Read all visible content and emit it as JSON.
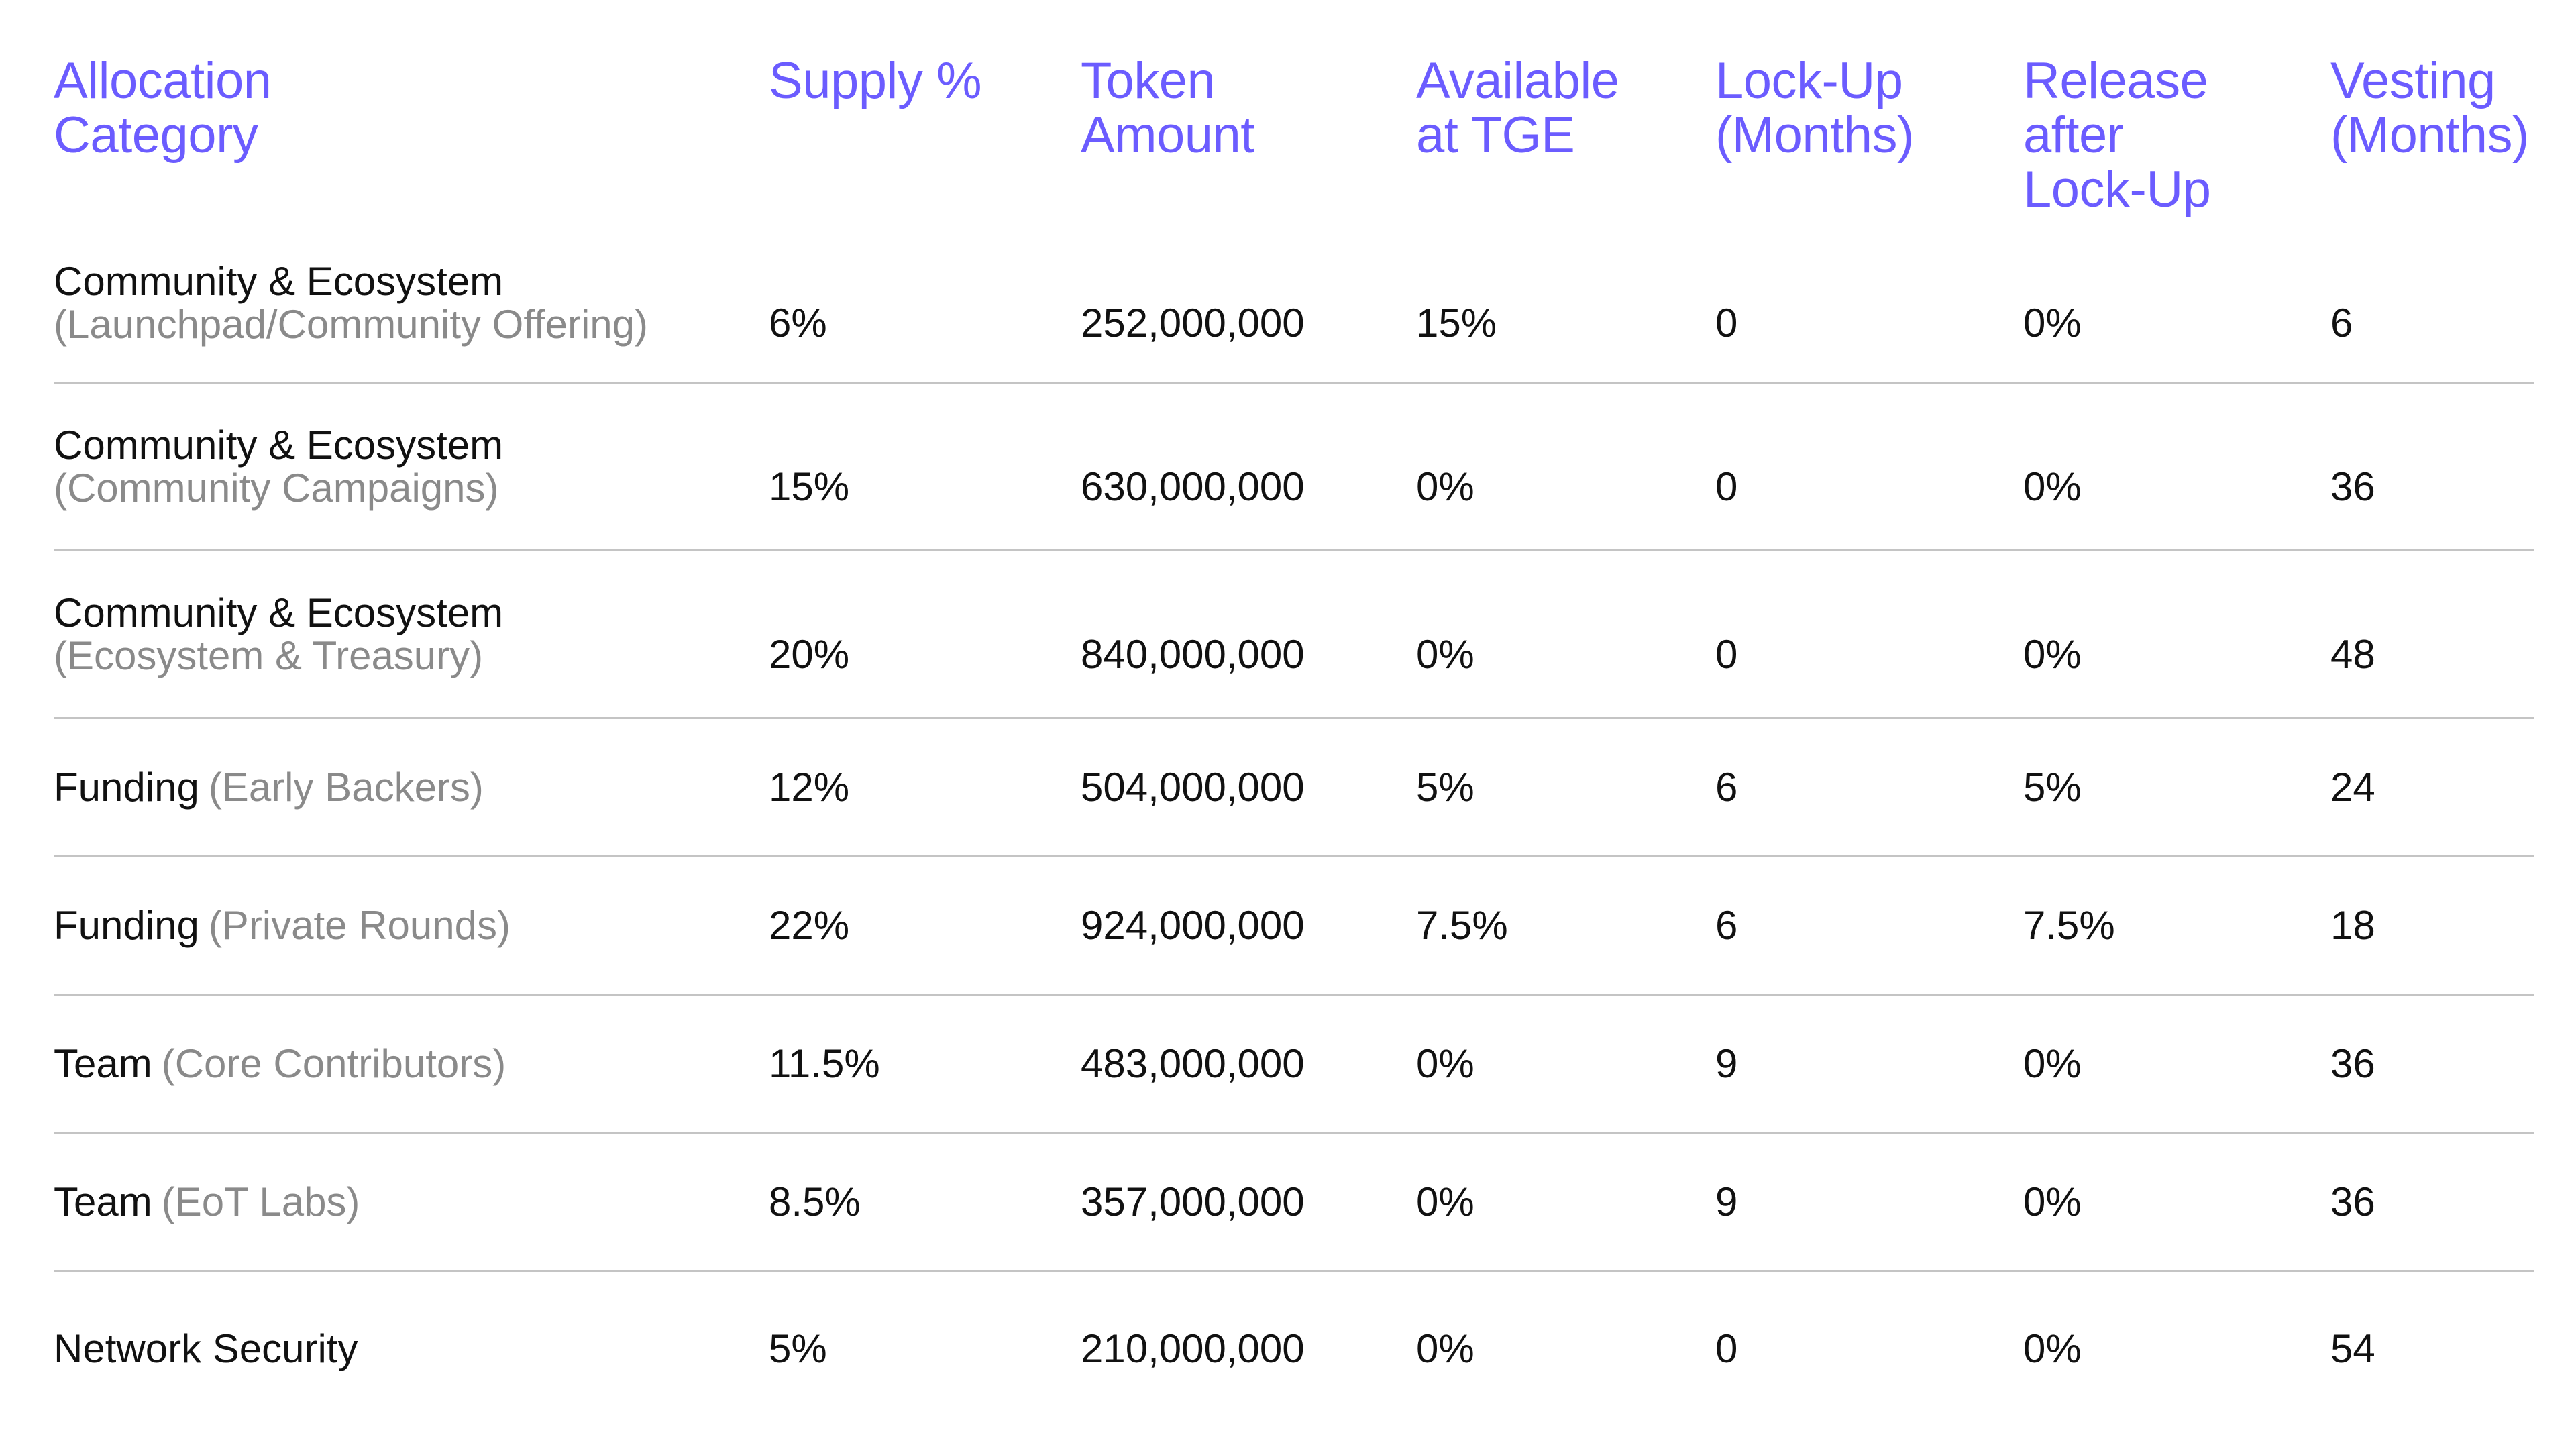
{
  "table": {
    "headers": [
      "Allocation\nCategory",
      "Supply %",
      "Token\nAmount",
      "Available\nat TGE",
      "Lock-Up\n(Months)",
      "Release\nafter\nLock-Up",
      "Vesting\n(Months)"
    ],
    "rows": [
      {
        "category": "Community & Ecosystem",
        "subcategory": "(Launchpad/Community Offering)",
        "supply": "6%",
        "token_amount": "252,000,000",
        "available_at_tge": "15%",
        "lock_up": "0",
        "release_after_lock_up": "0%",
        "vesting": "6"
      },
      {
        "category": "Community & Ecosystem",
        "subcategory": "(Community Campaigns)",
        "supply": "15%",
        "token_amount": "630,000,000",
        "available_at_tge": "0%",
        "lock_up": "0",
        "release_after_lock_up": "0%",
        "vesting": "36"
      },
      {
        "category": "Community & Ecosystem",
        "subcategory": "(Ecosystem & Treasury)",
        "supply": "20%",
        "token_amount": "840,000,000",
        "available_at_tge": "0%",
        "lock_up": "0",
        "release_after_lock_up": "0%",
        "vesting": "48"
      },
      {
        "category": "Funding",
        "subcategory": "(Early Backers)",
        "supply": "12%",
        "token_amount": "504,000,000",
        "available_at_tge": "5%",
        "lock_up": "6",
        "release_after_lock_up": "5%",
        "vesting": "24"
      },
      {
        "category": "Funding",
        "subcategory": "(Private Rounds)",
        "supply": "22%",
        "token_amount": "924,000,000",
        "available_at_tge": "7.5%",
        "lock_up": "6",
        "release_after_lock_up": "7.5%",
        "vesting": "18"
      },
      {
        "category": "Team",
        "subcategory": "(Core Contributors)",
        "supply": "11.5%",
        "token_amount": "483,000,000",
        "available_at_tge": "0%",
        "lock_up": "9",
        "release_after_lock_up": "0%",
        "vesting": "36"
      },
      {
        "category": "Team",
        "subcategory": "(EoT Labs)",
        "supply": "8.5%",
        "token_amount": "357,000,000",
        "available_at_tge": "0%",
        "lock_up": "9",
        "release_after_lock_up": "0%",
        "vesting": "36"
      },
      {
        "category": "Network Security",
        "subcategory": "",
        "supply": "5%",
        "token_amount": "210,000,000",
        "available_at_tge": "0%",
        "lock_up": "0",
        "release_after_lock_up": "0%",
        "vesting": "54"
      }
    ]
  },
  "colors": {
    "header_text": "#6b5cff",
    "body_text": "#111111",
    "subcategory_text": "#8a8a8a",
    "row_divider": "#c4c4c4"
  }
}
